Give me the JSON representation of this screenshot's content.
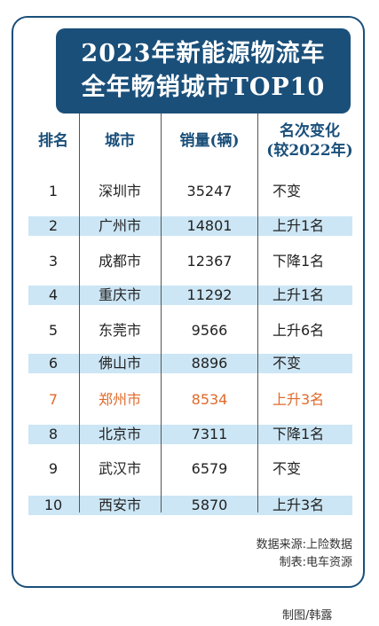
{
  "title": {
    "line1": "2023年新能源物流车",
    "line2": "全年畅销城市TOP10"
  },
  "headers": {
    "rank": "排名",
    "city": "城市",
    "sales": "销量(辆)",
    "change_line1": "名次变化",
    "change_line2": "(较2022年)"
  },
  "rows": [
    {
      "rank": "1",
      "city": "深圳市",
      "sales": "35247",
      "change": "不变"
    },
    {
      "rank": "2",
      "city": "广州市",
      "sales": "14801",
      "change": "上升1名"
    },
    {
      "rank": "3",
      "city": "成都市",
      "sales": "12367",
      "change": "下降1名"
    },
    {
      "rank": "4",
      "city": "重庆市",
      "sales": "11292",
      "change": "上升1名"
    },
    {
      "rank": "5",
      "city": "东莞市",
      "sales": "9566",
      "change": "上升6名"
    },
    {
      "rank": "6",
      "city": "佛山市",
      "sales": "8896",
      "change": "不变"
    },
    {
      "rank": "7",
      "city": "郑州市",
      "sales": "8534",
      "change": "上升3名"
    },
    {
      "rank": "8",
      "city": "北京市",
      "sales": "7311",
      "change": "下降1名"
    },
    {
      "rank": "9",
      "city": "武汉市",
      "sales": "6579",
      "change": "不变"
    },
    {
      "rank": "10",
      "city": "西安市",
      "sales": "5870",
      "change": "上升3名"
    }
  ],
  "source": "数据来源:上险数据",
  "table_maker": "制表:电车资源",
  "credit": "制图/韩露",
  "colors": {
    "accent": "#1a4f7a",
    "row_shade": "#cce6f5",
    "highlight": "#e06a2b"
  }
}
